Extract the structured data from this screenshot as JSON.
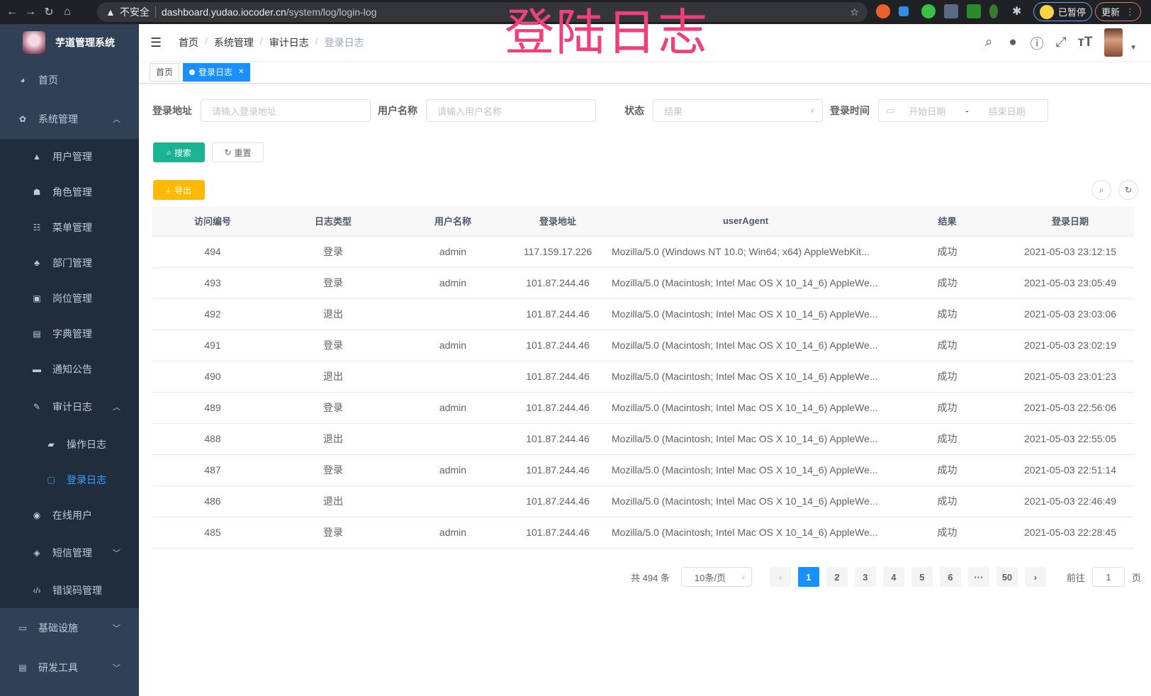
{
  "browser": {
    "security": "不安全",
    "url_host": "dashboard.yudao.iocoder.cn",
    "url_path": "/system/log/login-log",
    "paused_label": "已暂停",
    "update_label": "更新"
  },
  "overlay_title": "登陆日志",
  "sidebar": {
    "app_title": "芋道管理系统",
    "items": [
      {
        "label": "首页",
        "icon": "dashboard-icon"
      },
      {
        "label": "系统管理",
        "icon": "gear-icon",
        "expanded": true
      },
      {
        "label": "用户管理",
        "icon": "user-icon"
      },
      {
        "label": "角色管理",
        "icon": "role-icon"
      },
      {
        "label": "菜单管理",
        "icon": "menu-tree-icon"
      },
      {
        "label": "部门管理",
        "icon": "org-tree-icon"
      },
      {
        "label": "岗位管理",
        "icon": "post-icon"
      },
      {
        "label": "字典管理",
        "icon": "dict-icon"
      },
      {
        "label": "通知公告",
        "icon": "message-icon"
      },
      {
        "label": "审计日志",
        "icon": "edit-icon",
        "expanded": true
      },
      {
        "label": "操作日志",
        "icon": "form-icon"
      },
      {
        "label": "登录日志",
        "icon": "logininfor-icon",
        "active": true
      },
      {
        "label": "在线用户",
        "icon": "online-icon"
      },
      {
        "label": "短信管理",
        "icon": "shield-icon",
        "expanded": false
      },
      {
        "label": "错误码管理",
        "icon": "code-icon"
      },
      {
        "label": "基础设施",
        "icon": "monitor-icon",
        "expanded": false
      },
      {
        "label": "研发工具",
        "icon": "tool-icon",
        "expanded": false
      }
    ]
  },
  "breadcrumb": [
    "首页",
    "系统管理",
    "审计日志",
    "登录日志"
  ],
  "tags": [
    {
      "label": "首页"
    },
    {
      "label": "登录日志",
      "active": true
    }
  ],
  "filters": {
    "address_label": "登录地址",
    "address_placeholder": "请输入登录地址",
    "username_label": "用户名称",
    "username_placeholder": "请输入用户名称",
    "status_label": "状态",
    "status_placeholder": "结果",
    "time_label": "登录时间",
    "start_placeholder": "开始日期",
    "range_sep": "-",
    "end_placeholder": "结束日期"
  },
  "buttons": {
    "search": "搜索",
    "reset": "重置",
    "export": "导出"
  },
  "colors": {
    "sidebar_bg": "#304156",
    "primary": "#1890ff",
    "search": "#1ab394",
    "export": "#ffba00",
    "overlay": "#f0407a"
  },
  "table": {
    "headers": [
      "访问编号",
      "日志类型",
      "用户名称",
      "登录地址",
      "userAgent",
      "结果",
      "登录日期"
    ],
    "rows": [
      [
        "494",
        "登录",
        "admin",
        "117.159.17.226",
        "Mozilla/5.0 (Windows NT 10.0; Win64; x64) AppleWebKit...",
        "成功",
        "2021-05-03 23:12:15"
      ],
      [
        "493",
        "登录",
        "admin",
        "101.87.244.46",
        "Mozilla/5.0 (Macintosh; Intel Mac OS X 10_14_6) AppleWe...",
        "成功",
        "2021-05-03 23:05:49"
      ],
      [
        "492",
        "退出",
        "",
        "101.87.244.46",
        "Mozilla/5.0 (Macintosh; Intel Mac OS X 10_14_6) AppleWe...",
        "成功",
        "2021-05-03 23:03:06"
      ],
      [
        "491",
        "登录",
        "admin",
        "101.87.244.46",
        "Mozilla/5.0 (Macintosh; Intel Mac OS X 10_14_6) AppleWe...",
        "成功",
        "2021-05-03 23:02:19"
      ],
      [
        "490",
        "退出",
        "",
        "101.87.244.46",
        "Mozilla/5.0 (Macintosh; Intel Mac OS X 10_14_6) AppleWe...",
        "成功",
        "2021-05-03 23:01:23"
      ],
      [
        "489",
        "登录",
        "admin",
        "101.87.244.46",
        "Mozilla/5.0 (Macintosh; Intel Mac OS X 10_14_6) AppleWe...",
        "成功",
        "2021-05-03 22:56:06"
      ],
      [
        "488",
        "退出",
        "",
        "101.87.244.46",
        "Mozilla/5.0 (Macintosh; Intel Mac OS X 10_14_6) AppleWe...",
        "成功",
        "2021-05-03 22:55:05"
      ],
      [
        "487",
        "登录",
        "admin",
        "101.87.244.46",
        "Mozilla/5.0 (Macintosh; Intel Mac OS X 10_14_6) AppleWe...",
        "成功",
        "2021-05-03 22:51:14"
      ],
      [
        "486",
        "退出",
        "",
        "101.87.244.46",
        "Mozilla/5.0 (Macintosh; Intel Mac OS X 10_14_6) AppleWe...",
        "成功",
        "2021-05-03 22:46:49"
      ],
      [
        "485",
        "登录",
        "admin",
        "101.87.244.46",
        "Mozilla/5.0 (Macintosh; Intel Mac OS X 10_14_6) AppleWe...",
        "成功",
        "2021-05-03 22:28:45"
      ]
    ]
  },
  "pagination": {
    "total": "共 494 条",
    "page_size": "10条/页",
    "pages": [
      "1",
      "2",
      "3",
      "4",
      "5",
      "6",
      "···",
      "50"
    ],
    "current": "1",
    "goto_label": "前往",
    "goto_value": "1",
    "goto_suffix": "页"
  }
}
